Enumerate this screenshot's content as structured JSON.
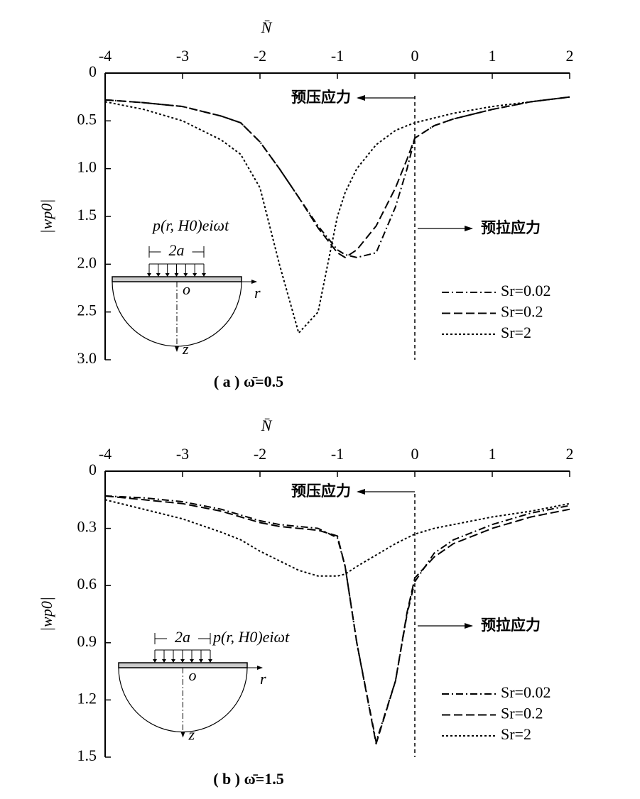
{
  "chart_data": [
    {
      "type": "line",
      "xlabel": "N̄",
      "ylabel": "|wp0|",
      "caption": "( a ) ω̄=0.5",
      "xlim": [
        -4,
        2
      ],
      "xticks": [
        -4,
        -3,
        -2,
        -1,
        0,
        1,
        2
      ],
      "ylim": [
        0,
        3
      ],
      "yticks": [
        0,
        0.5,
        {
          "value": 1,
          "label": "1.0"
        },
        1.5,
        {
          "value": 2,
          "label": "2.0"
        },
        2.5,
        {
          "value": 3,
          "label": "3.0"
        }
      ],
      "y_inverted": true,
      "x_axis_position": "top",
      "vline": 0,
      "legend": "lower right",
      "annotations": {
        "compression": "预压应力",
        "tension": "预拉应力"
      },
      "inset": {
        "load": "p(r, H0)eiωt",
        "width": "2a",
        "origin": "o",
        "r_axis": "r",
        "z_axis": "z"
      },
      "x": [
        -4,
        -3.5,
        -3,
        -2.5,
        -2.25,
        -2,
        -1.75,
        -1.5,
        -1.25,
        -1,
        -0.9,
        -0.75,
        -0.5,
        -0.25,
        -0.1,
        0,
        0.25,
        0.5,
        1,
        1.5,
        2
      ],
      "series": [
        {
          "name": "Sr=0.02",
          "color": "#000000",
          "linestyle": "dashdot",
          "values": [
            0.28,
            0.31,
            0.35,
            0.45,
            0.52,
            0.72,
            1.0,
            1.3,
            1.6,
            1.85,
            1.9,
            1.93,
            1.88,
            1.4,
            1.0,
            0.68,
            0.55,
            0.48,
            0.38,
            0.3,
            0.25
          ]
        },
        {
          "name": "Sr=0.2",
          "color": "#000000",
          "linestyle": "dashed",
          "values": [
            0.28,
            0.31,
            0.35,
            0.45,
            0.52,
            0.72,
            1.0,
            1.3,
            1.62,
            1.88,
            1.93,
            1.85,
            1.6,
            1.2,
            0.9,
            0.68,
            0.55,
            0.48,
            0.38,
            0.3,
            0.25
          ]
        },
        {
          "name": "Sr=2",
          "color": "#000000",
          "linestyle": "dotted",
          "values": [
            0.3,
            0.38,
            0.5,
            0.7,
            0.85,
            1.2,
            2.0,
            2.72,
            2.5,
            1.5,
            1.25,
            1.0,
            0.75,
            0.6,
            0.55,
            0.52,
            0.47,
            0.42,
            0.35,
            0.3,
            0.25
          ]
        }
      ]
    },
    {
      "type": "line",
      "xlabel": "N̄",
      "ylabel": "|wp0|",
      "caption": "( b ) ω̄=1.5",
      "xlim": [
        -4,
        2
      ],
      "xticks": [
        -4,
        -3,
        -2,
        -1,
        0,
        1,
        2
      ],
      "ylim": [
        0,
        1.5
      ],
      "yticks": [
        0,
        0.3,
        0.6,
        0.9,
        1.2,
        1.5
      ],
      "y_inverted": true,
      "x_axis_position": "top",
      "vline": 0,
      "legend": "lower right",
      "annotations": {
        "compression": "预压应力",
        "tension": "预拉应力"
      },
      "inset": {
        "load": "p(r, H0)eiωt",
        "width": "2a",
        "origin": "o",
        "r_axis": "r",
        "z_axis": "z"
      },
      "x": [
        -4,
        -3.5,
        -3,
        -2.5,
        -2.25,
        -2,
        -1.75,
        -1.5,
        -1.25,
        -1,
        -0.9,
        -0.75,
        -0.5,
        -0.25,
        -0.1,
        0,
        0.25,
        0.5,
        1,
        1.5,
        2
      ],
      "series": [
        {
          "name": "Sr=0.02",
          "color": "#000000",
          "linestyle": "dashdot",
          "values": [
            0.13,
            0.14,
            0.16,
            0.2,
            0.23,
            0.26,
            0.28,
            0.29,
            0.3,
            0.35,
            0.5,
            0.9,
            1.42,
            1.1,
            0.75,
            0.58,
            0.43,
            0.36,
            0.28,
            0.22,
            0.18
          ]
        },
        {
          "name": "Sr=0.2",
          "color": "#000000",
          "linestyle": "dashed",
          "values": [
            0.13,
            0.15,
            0.17,
            0.21,
            0.24,
            0.27,
            0.29,
            0.3,
            0.31,
            0.34,
            0.5,
            0.9,
            1.43,
            1.1,
            0.74,
            0.56,
            0.45,
            0.38,
            0.3,
            0.24,
            0.2
          ]
        },
        {
          "name": "Sr=2",
          "color": "#000000",
          "linestyle": "dotted",
          "values": [
            0.15,
            0.2,
            0.25,
            0.32,
            0.36,
            0.42,
            0.47,
            0.52,
            0.55,
            0.55,
            0.54,
            0.5,
            0.44,
            0.38,
            0.35,
            0.33,
            0.3,
            0.28,
            0.24,
            0.21,
            0.17
          ]
        }
      ]
    }
  ]
}
